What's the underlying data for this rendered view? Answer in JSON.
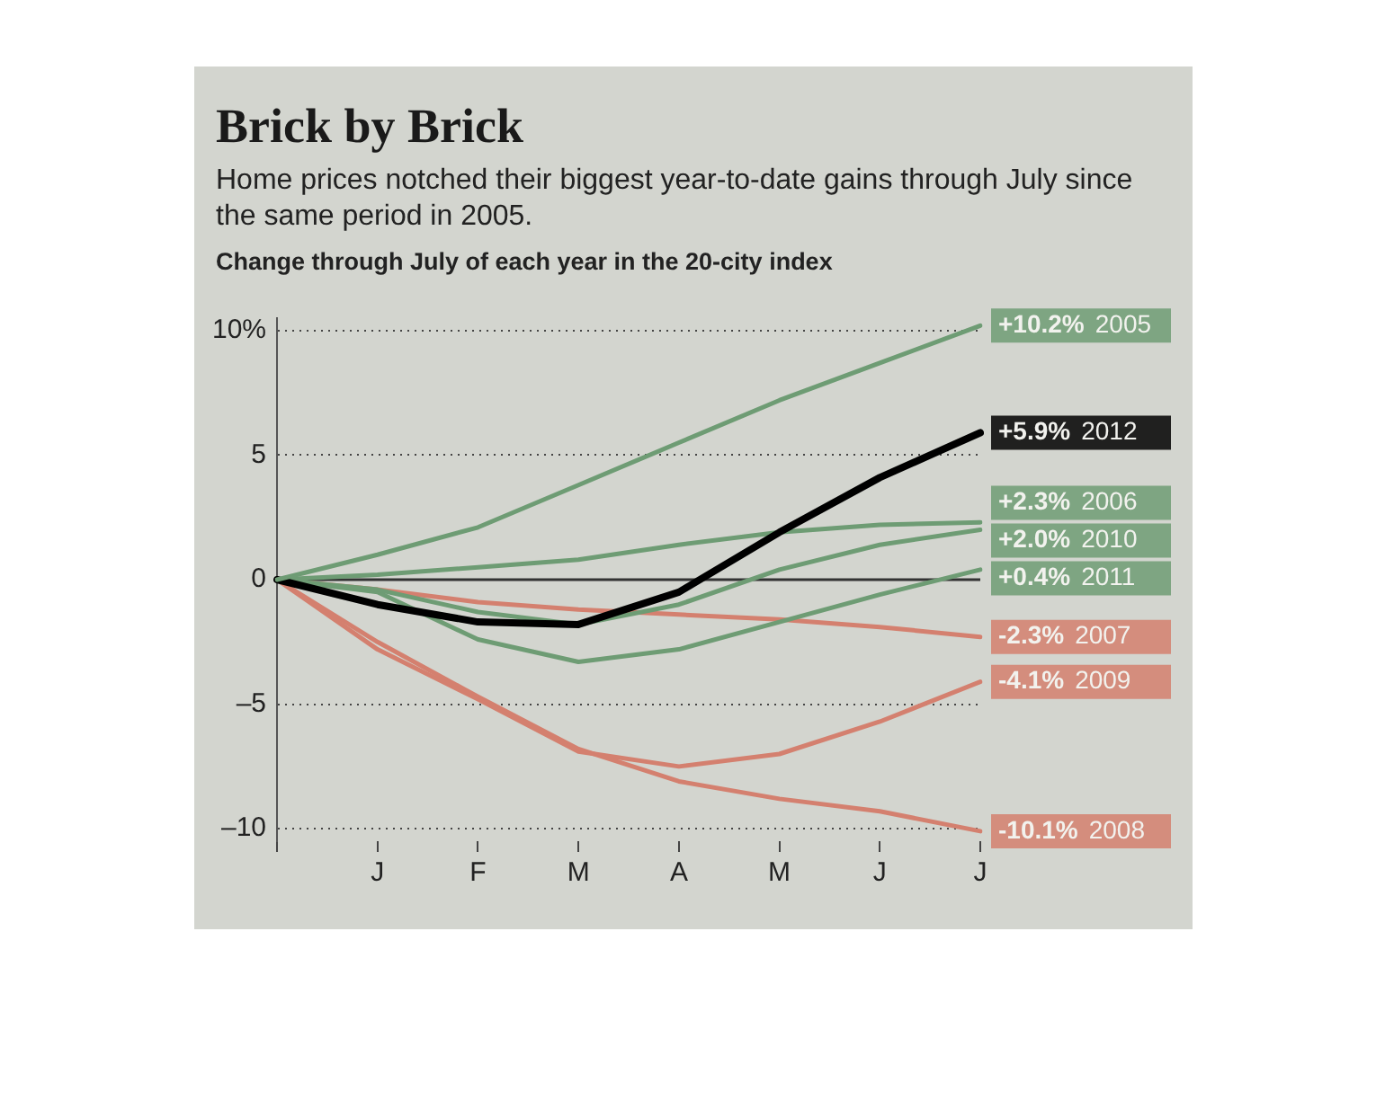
{
  "chart_data": {
    "type": "line",
    "title": "Brick by Brick",
    "subtitle": "Home prices notched their biggest year-to-date gains through July since the same period in 2005.",
    "annotations": [
      "Change through July of each year in the 20-city index"
    ],
    "categories": [
      null,
      "J",
      "F",
      "M",
      "A",
      "M",
      "J",
      "J"
    ],
    "series": [
      {
        "name": "2005",
        "color": "#6e9c74",
        "values": [
          0,
          1.0,
          2.1,
          3.8,
          5.5,
          7.2,
          8.7,
          10.2
        ],
        "value_labels": [
          null,
          null,
          null,
          null,
          null,
          null,
          null,
          "+10.2%"
        ]
      },
      {
        "name": "2012",
        "color": "#000000",
        "values": [
          0,
          -1.0,
          -1.7,
          -1.8,
          -0.5,
          1.9,
          4.1,
          5.9
        ],
        "value_labels": [
          null,
          null,
          null,
          null,
          null,
          null,
          null,
          "+5.9%"
        ]
      },
      {
        "name": "2006",
        "color": "#6e9c74",
        "values": [
          0,
          0.2,
          0.5,
          0.8,
          1.4,
          1.9,
          2.2,
          2.3
        ],
        "value_labels": [
          null,
          null,
          null,
          null,
          null,
          null,
          null,
          "+2.3%"
        ]
      },
      {
        "name": "2010",
        "color": "#6e9c74",
        "values": [
          0,
          -0.4,
          -1.3,
          -1.8,
          -1.0,
          0.4,
          1.4,
          2.0
        ],
        "value_labels": [
          null,
          null,
          null,
          null,
          null,
          null,
          null,
          "+2.0%"
        ]
      },
      {
        "name": "2011",
        "color": "#6e9c74",
        "values": [
          0,
          -0.5,
          -2.4,
          -3.3,
          -2.8,
          -1.7,
          -0.6,
          0.4
        ],
        "value_labels": [
          null,
          null,
          null,
          null,
          null,
          null,
          null,
          "+0.4%"
        ]
      },
      {
        "name": "2007",
        "color": "#d4806f",
        "values": [
          0,
          -0.4,
          -0.9,
          -1.2,
          -1.4,
          -1.6,
          -1.9,
          -2.3
        ],
        "value_labels": [
          null,
          null,
          null,
          null,
          null,
          null,
          null,
          "-2.3%"
        ]
      },
      {
        "name": "2009",
        "color": "#d4806f",
        "values": [
          0,
          -2.8,
          -4.8,
          -6.9,
          -7.5,
          -7.0,
          -5.7,
          -4.1
        ],
        "value_labels": [
          null,
          null,
          null,
          null,
          null,
          null,
          null,
          "-4.1%"
        ]
      },
      {
        "name": "2008",
        "color": "#d4806f",
        "values": [
          0,
          -2.5,
          -4.7,
          -6.8,
          -8.1,
          -8.8,
          -9.3,
          -10.1
        ],
        "value_labels": [
          null,
          null,
          null,
          null,
          null,
          null,
          null,
          "-10.1%"
        ]
      }
    ],
    "ylim": [
      -10.5,
      10.5
    ],
    "yticks": [
      {
        "value": -10,
        "label": "–10"
      },
      {
        "value": -5,
        "label": "–5"
      },
      0,
      5,
      {
        "value": 10,
        "label": "10%"
      }
    ],
    "grid": "y",
    "legend": false,
    "marker": "none",
    "line_style": "solid"
  }
}
